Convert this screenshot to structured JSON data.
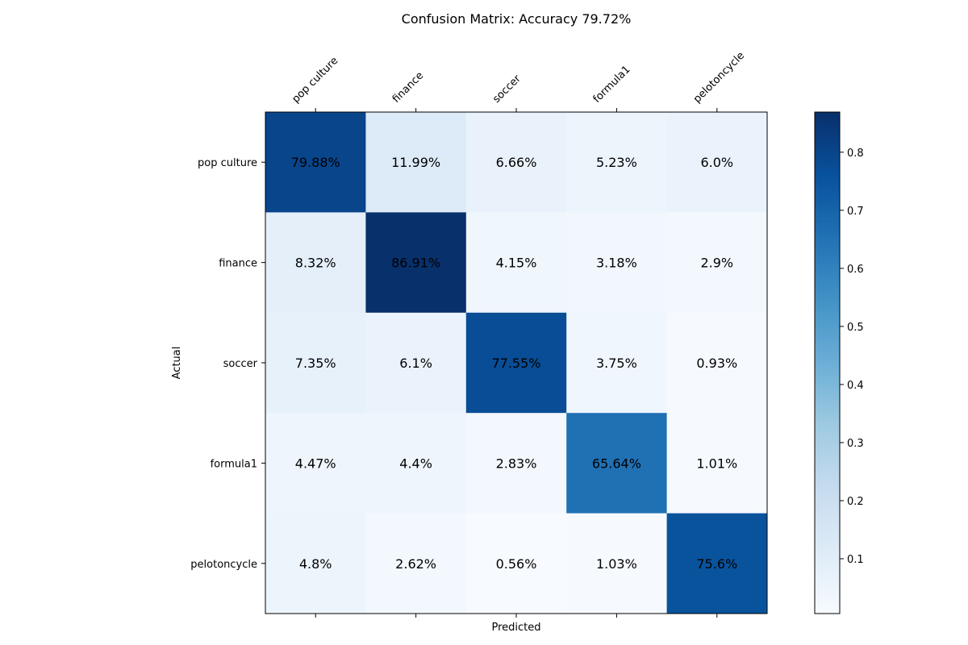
{
  "chart_data": {
    "type": "heatmap",
    "title": "Confusion Matrix: Accuracy 79.72%",
    "xlabel": "Predicted",
    "ylabel": "Actual",
    "x_categories": [
      "pop culture",
      "finance",
      "soccer",
      "formula1",
      "pelotoncycle"
    ],
    "y_categories": [
      "pop culture",
      "finance",
      "soccer",
      "formula1",
      "pelotoncycle"
    ],
    "values": [
      [
        0.7988,
        0.1199,
        0.0666,
        0.0523,
        0.06
      ],
      [
        0.0832,
        0.8691,
        0.0415,
        0.0318,
        0.029
      ],
      [
        0.0735,
        0.061,
        0.7755,
        0.0375,
        0.0093
      ],
      [
        0.0447,
        0.044,
        0.0283,
        0.6564,
        0.0101
      ],
      [
        0.048,
        0.0262,
        0.0056,
        0.0103,
        0.756
      ]
    ],
    "cell_labels": [
      [
        "79.88%",
        "11.99%",
        "6.66%",
        "5.23%",
        "6.0%"
      ],
      [
        "8.32%",
        "86.91%",
        "4.15%",
        "3.18%",
        "2.9%"
      ],
      [
        "7.35%",
        "6.1%",
        "77.55%",
        "3.75%",
        "0.93%"
      ],
      [
        "4.47%",
        "4.4%",
        "2.83%",
        "65.64%",
        "1.01%"
      ],
      [
        "4.8%",
        "2.62%",
        "0.56%",
        "1.03%",
        "75.6%"
      ]
    ],
    "colormap": "Blues",
    "colorbar": {
      "range": [
        0.0056,
        0.8691
      ],
      "ticks": [
        0.1,
        0.2,
        0.3,
        0.4,
        0.5,
        0.6,
        0.7,
        0.8
      ],
      "tick_labels": [
        "0.1",
        "0.2",
        "0.3",
        "0.4",
        "0.5",
        "0.6",
        "0.7",
        "0.8"
      ]
    },
    "x_tick_position": "top",
    "grid": false
  }
}
